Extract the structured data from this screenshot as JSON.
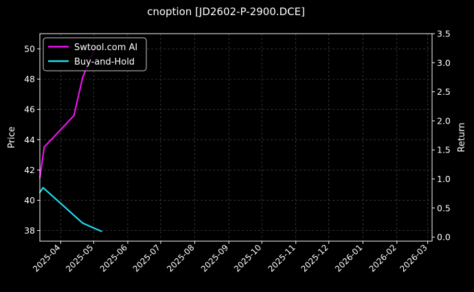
{
  "chart_data": {
    "type": "line",
    "title": "cnoption [JD2602-P-2900.DCE]",
    "xlabel": "",
    "ylabel": "Price",
    "y2label": "Return",
    "x_ticks": [
      "2025-04",
      "2025-05",
      "2025-06",
      "2025-07",
      "2025-08",
      "2025-09",
      "2025-10",
      "2025-11",
      "2025-12",
      "2026-01",
      "2026-02",
      "2026-03"
    ],
    "y_ticks": [
      "38",
      "40",
      "42",
      "44",
      "46",
      "48",
      "50"
    ],
    "y2_ticks": [
      "0.0",
      "0.5",
      "1.0",
      "1.5",
      "2.0",
      "2.5",
      "3.0",
      "3.5"
    ],
    "xlim": [
      "2025-03-13",
      "2026-03-05"
    ],
    "ylim": [
      37.3,
      51.0
    ],
    "y2lim": [
      -0.07,
      3.5
    ],
    "grid": true,
    "legend_position": "upper-left",
    "colors": {
      "background": "#000000",
      "text": "#ffffff",
      "grid": "#555555",
      "ai": "#ee11ee",
      "hold": "#22ddee"
    },
    "series": [
      {
        "name": "Swtool.com AI",
        "axis": "right",
        "x": [
          "2025-03-13",
          "2025-03-17",
          "2025-04-13",
          "2025-04-21",
          "2025-04-26",
          "2025-05-03"
        ],
        "y": [
          1.02,
          1.55,
          2.09,
          2.75,
          2.98,
          3.3
        ]
      },
      {
        "name": "Buy-and-Hold",
        "axis": "right",
        "x": [
          "2025-03-13",
          "2025-03-16",
          "2025-04-11",
          "2025-04-21",
          "2025-05-08"
        ],
        "y": [
          0.77,
          0.85,
          0.41,
          0.24,
          0.1
        ]
      }
    ]
  }
}
